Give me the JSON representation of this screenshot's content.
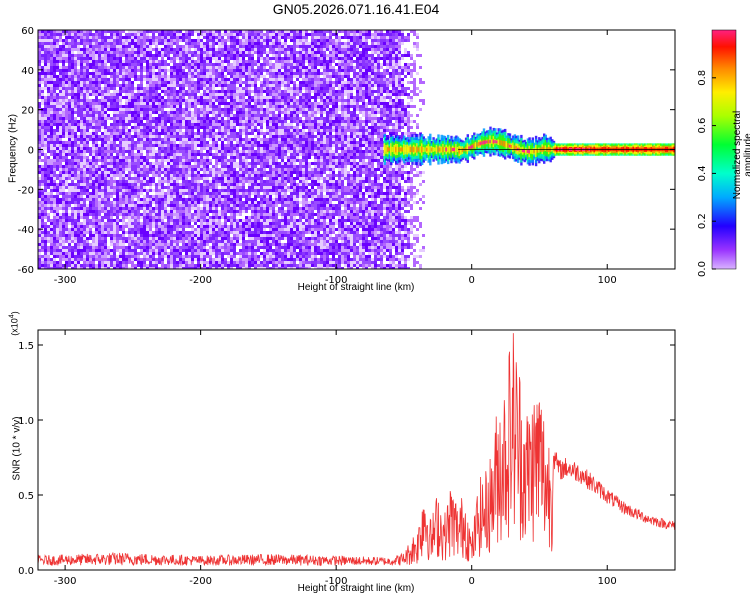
{
  "title": "GN05.2026.071.16.41.E04",
  "chart_data": [
    {
      "type": "heatmap",
      "name": "spectrogram",
      "xlabel": "Height of straight line (km)",
      "ylabel": "Frequency (Hz)",
      "xlim": [
        -320,
        150
      ],
      "ylim": [
        -60,
        60
      ],
      "x_ticks": [
        -300,
        -200,
        -100,
        0,
        100
      ],
      "x_tick_labels": [
        "-300",
        "-200",
        "-100",
        "0",
        "100"
      ],
      "y_ticks": [
        -60,
        -40,
        -20,
        0,
        20,
        40,
        60
      ],
      "y_tick_labels": [
        "-60",
        "-40",
        "-20",
        "0",
        "20",
        "40",
        "60"
      ],
      "noise_region_x": [
        -320,
        -45
      ],
      "signal_band": {
        "x_start": -65,
        "x_end": 150,
        "center_freq": 0,
        "halfwidth_hz": 4
      },
      "colorbar": {
        "label": "Normalized spectral amplitude",
        "range": [
          0,
          1
        ],
        "ticks": [
          0.0,
          0.2,
          0.4,
          0.6,
          0.8
        ],
        "tick_labels": [
          "0.0",
          "0.2",
          "0.4",
          "0.6",
          "0.8"
        ],
        "colors": [
          "#cc66ff",
          "#7a2cff",
          "#0000ff",
          "#00c8ff",
          "#00ff88",
          "#88ff00",
          "#ffee00",
          "#ff8800",
          "#ff0000",
          "#ff1a8c"
        ]
      }
    },
    {
      "type": "line",
      "name": "snr",
      "xlabel": "Height of straight line (km)",
      "ylabel": "SNR (10 * v/v)",
      "y_multiplier_label": "(x10",
      "y_multiplier_exp": "4",
      "y_multiplier_close": ")",
      "xlim": [
        -320,
        150
      ],
      "ylim": [
        0,
        1.6
      ],
      "x_ticks": [
        -300,
        -200,
        -100,
        0,
        100
      ],
      "x_tick_labels": [
        "-300",
        "-200",
        "-100",
        "0",
        "100"
      ],
      "y_ticks": [
        0.0,
        0.5,
        1.0,
        1.5
      ],
      "y_tick_labels": [
        "0.0",
        "0.5",
        "1.0",
        "1.5"
      ],
      "color": "#ee3333",
      "series": [
        {
          "name": "SNR envelope",
          "x": [
            -320,
            -260,
            -200,
            -150,
            -100,
            -60,
            -50,
            -40,
            -35,
            -30,
            -25,
            -20,
            -15,
            -10,
            -5,
            0,
            5,
            10,
            15,
            20,
            25,
            30,
            35,
            40,
            45,
            50,
            55,
            60,
            65,
            70,
            80,
            90,
            100,
            110,
            120,
            130,
            140,
            150
          ],
          "y": [
            0.06,
            0.08,
            0.06,
            0.07,
            0.06,
            0.05,
            0.08,
            0.25,
            0.6,
            0.3,
            0.5,
            0.35,
            0.55,
            0.4,
            0.5,
            0.2,
            0.55,
            0.6,
            0.75,
            1.1,
            1.2,
            1.55,
            1.3,
            1.0,
            1.1,
            1.2,
            0.9,
            0.8,
            0.7,
            0.72,
            0.68,
            0.6,
            0.52,
            0.45,
            0.4,
            0.36,
            0.33,
            0.31
          ]
        }
      ]
    }
  ]
}
